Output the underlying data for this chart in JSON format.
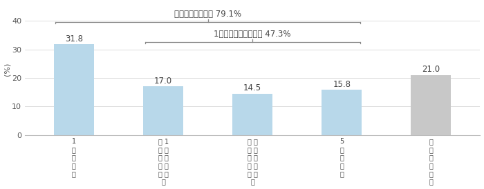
{
  "values": [
    31.8,
    17.0,
    14.5,
    15.8,
    21.0
  ],
  "bar_colors": [
    "#b8d8ea",
    "#b8d8ea",
    "#b8d8ea",
    "#b8d8ea",
    "#c8c8c8"
  ],
  "ylabel": "(%)",
  "ylim": [
    0,
    46
  ],
  "yticks": [
    0,
    10,
    20,
    30,
    40
  ],
  "xtick_labels": [
    "1\n万\n円\n未\n満",
    "３ 1\n万 万\n円 円\n未 以\n満 上\n〜",
    "５ ３\n万 万\n円 円\n未 以\n満 上\n〜",
    "5\n万\n円\n以\n上",
    "使\nっ\nて\nい\nな\nい"
  ],
  "brace1_label": "お金を使った人計 79.1%",
  "brace2_label": "1万円以上使った人計 47.3%",
  "background_color": "#ffffff",
  "grid_color": "#d8d8d8",
  "text_color": "#555555"
}
